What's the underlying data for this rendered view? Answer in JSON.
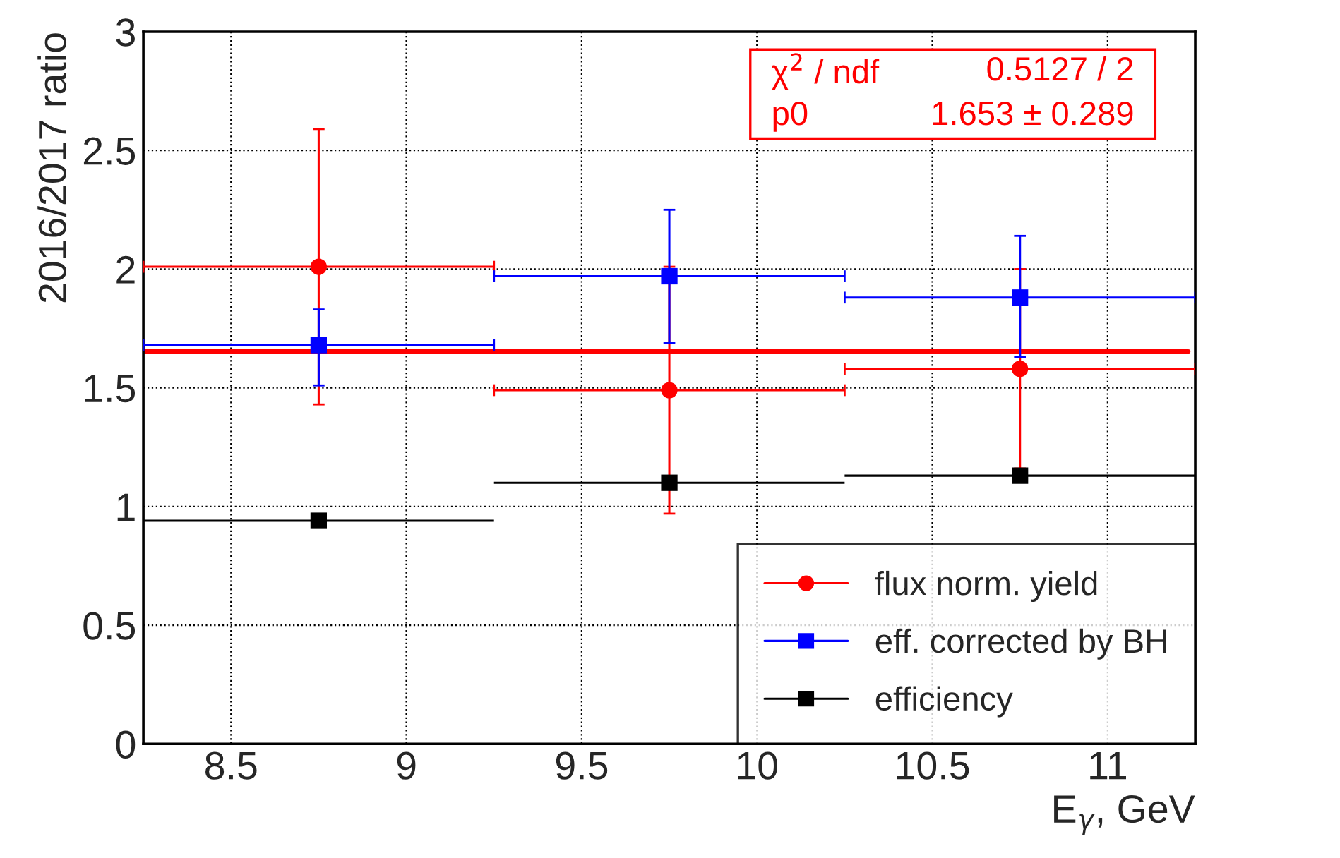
{
  "chart_data": {
    "type": "scatter",
    "xlabel": "E$_{γ}$, GeV",
    "ylabel": "2016/2017 ratio",
    "x": [
      8.75,
      9.75,
      10.75
    ],
    "xlim": [
      8.25,
      11.25
    ],
    "xticks": [
      8.5,
      9,
      9.5,
      10,
      10.5,
      11
    ],
    "ylim": [
      0,
      3
    ],
    "yticks": [
      0,
      0.5,
      1,
      1.5,
      2,
      2.5,
      3
    ],
    "grid": true,
    "legend": "bottom right",
    "series": [
      {
        "name": "flux norm. yield",
        "color": "#ff0000",
        "marker": "circle",
        "values": [
          2.01,
          1.49,
          1.58
        ],
        "errors": [
          [
            1.43,
            2.59
          ],
          [
            0.97,
            2.01
          ],
          [
            1.16,
            2.0
          ]
        ],
        "xerrors": [
          0.5,
          0.5,
          0.5
        ]
      },
      {
        "name": "eff. corrected by BH",
        "color": "#0000ff",
        "marker": "square",
        "values": [
          1.68,
          1.97,
          1.88
        ],
        "errors": [
          [
            1.51,
            1.83
          ],
          [
            1.69,
            2.25
          ],
          [
            1.63,
            2.14
          ]
        ],
        "xerrors": [
          0.5,
          0.5,
          0.5
        ]
      },
      {
        "name": "efficiency",
        "color": "#000000",
        "marker": "square",
        "values": [
          0.94,
          1.1,
          1.13
        ],
        "xerrors": [
          0.5,
          0.5,
          0.5
        ]
      },
      {
        "type": "line",
        "color": "#ff0000",
        "x": [
          8.25,
          11.23
        ],
        "values": [
          1.653,
          1.653
        ]
      }
    ],
    "annotations": [
      "χ$^{2}$ / ndf",
      "0.5127 / 2",
      "p0",
      "1.653 ± 0.289"
    ]
  }
}
